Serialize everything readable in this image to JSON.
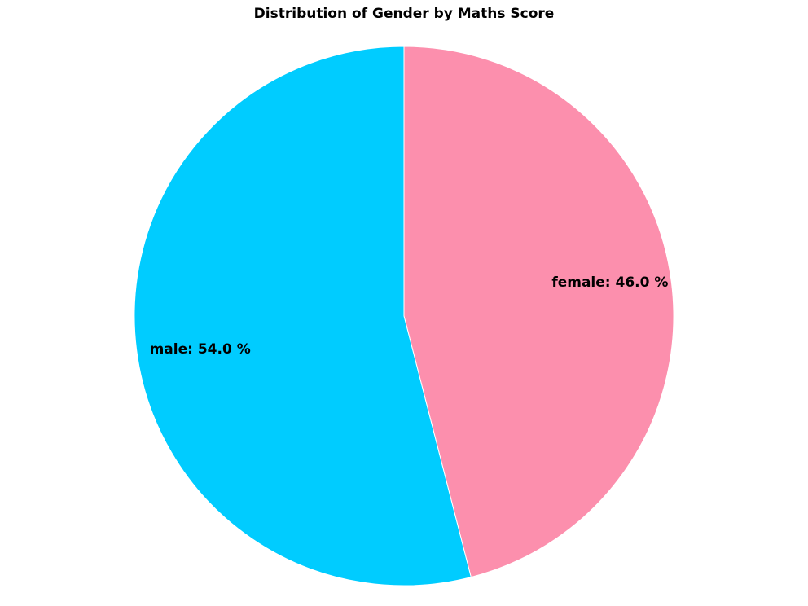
{
  "chart_data": {
    "type": "pie",
    "title": "Distribution of Gender by Maths Score",
    "slices": [
      {
        "name": "female",
        "value": 46.0,
        "label": "female: 46.0 %",
        "color": "#fc8fad"
      },
      {
        "name": "male",
        "value": 54.0,
        "label": "male: 54.0 %",
        "color": "#00ccff"
      }
    ],
    "start_angle_deg": 0,
    "direction": "clockwise",
    "legend": "none"
  }
}
